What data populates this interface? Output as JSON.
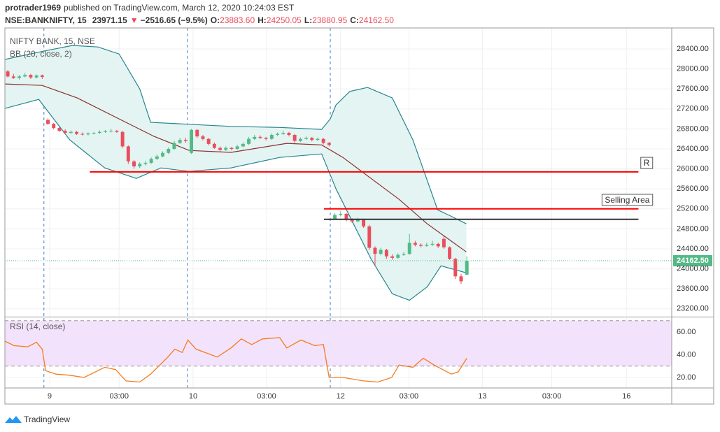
{
  "header": {
    "author": "protrader1969",
    "published": "published on TradingView.com, March 12, 2020 10:24:03 EST",
    "symbol": "NSE:BANKNIFTY, 15",
    "last": "23971.15",
    "arrow": "▼",
    "change": "−2516.65 (−9.5%)",
    "quote": [
      [
        "O:",
        "23883.60"
      ],
      [
        "H:",
        "24250.05"
      ],
      [
        "L:",
        "23880.95"
      ],
      [
        "C:",
        "24162.50"
      ]
    ]
  },
  "footer": {
    "brand": "TradingView"
  },
  "chart_data": [
    {
      "type": "candlestick",
      "title": "NIFTY BANK, 15, NSE",
      "up_color": "#53b987",
      "down_color": "#eb4d5c",
      "candles": [
        [
          27950,
          27980,
          27830,
          27850
        ],
        [
          27850,
          27900,
          27800,
          27820
        ],
        [
          27820,
          27880,
          27790,
          27850
        ],
        [
          27850,
          27920,
          27830,
          27880
        ],
        [
          27880,
          27900,
          27800,
          27830
        ],
        [
          27830,
          27890,
          27810,
          27870
        ],
        [
          27870,
          27890,
          27800,
          27840
        ],
        [
          26980,
          27010,
          26880,
          26900
        ],
        [
          26900,
          26920,
          26790,
          26820
        ],
        [
          26820,
          26840,
          26740,
          26760
        ],
        [
          26760,
          26790,
          26700,
          26720
        ],
        [
          26720,
          26770,
          26700,
          26740
        ],
        [
          26740,
          26760,
          26680,
          26700
        ],
        [
          26700,
          26730,
          26670,
          26690
        ],
        [
          26690,
          26730,
          26670,
          26710
        ],
        [
          26710,
          26740,
          26690,
          26720
        ],
        [
          26720,
          26770,
          26700,
          26740
        ],
        [
          26740,
          26780,
          26720,
          26750
        ],
        [
          26750,
          26800,
          26730,
          26760
        ],
        [
          26760,
          26780,
          26720,
          26740
        ],
        [
          26740,
          26760,
          26420,
          26450
        ],
        [
          26450,
          26470,
          26100,
          26150
        ],
        [
          26150,
          26180,
          26000,
          26050
        ],
        [
          26050,
          26130,
          26020,
          26100
        ],
        [
          26100,
          26160,
          26070,
          26120
        ],
        [
          26120,
          26230,
          26100,
          26200
        ],
        [
          26200,
          26290,
          26180,
          26250
        ],
        [
          26250,
          26350,
          26230,
          26320
        ],
        [
          26320,
          26430,
          26300,
          26400
        ],
        [
          26400,
          26560,
          26380,
          26520
        ],
        [
          26520,
          26620,
          26500,
          26580
        ],
        [
          26580,
          26620,
          26520,
          26560
        ],
        [
          26320,
          26800,
          26300,
          26780
        ],
        [
          26780,
          26800,
          26620,
          26650
        ],
        [
          26650,
          26680,
          26570,
          26600
        ],
        [
          26600,
          26620,
          26470,
          26500
        ],
        [
          26500,
          26530,
          26400,
          26420
        ],
        [
          26420,
          26450,
          26350,
          26380
        ],
        [
          26380,
          26450,
          26360,
          26420
        ],
        [
          26420,
          26440,
          26370,
          26400
        ],
        [
          26400,
          26480,
          26380,
          26450
        ],
        [
          26450,
          26530,
          26430,
          26500
        ],
        [
          26500,
          26640,
          26480,
          26600
        ],
        [
          26600,
          26680,
          26580,
          26640
        ],
        [
          26640,
          26670,
          26600,
          26620
        ],
        [
          26620,
          26640,
          26570,
          26600
        ],
        [
          26600,
          26710,
          26580,
          26680
        ],
        [
          26680,
          26730,
          26660,
          26700
        ],
        [
          26700,
          26760,
          26680,
          26720
        ],
        [
          26720,
          26740,
          26650,
          26680
        ],
        [
          26680,
          26700,
          26520,
          26560
        ],
        [
          26560,
          26630,
          26540,
          26600
        ],
        [
          26600,
          26650,
          26580,
          26620
        ],
        [
          26620,
          26640,
          26550,
          26580
        ],
        [
          26580,
          26630,
          26560,
          26600
        ],
        [
          26600,
          26620,
          26490,
          26520
        ],
        [
          26520,
          26540,
          26450,
          26480
        ],
        [
          25000,
          25120,
          24980,
          25080
        ],
        [
          25080,
          25150,
          25050,
          25100
        ],
        [
          25100,
          25120,
          24950,
          24980
        ],
        [
          24980,
          25010,
          24920,
          24950
        ],
        [
          24950,
          25020,
          24930,
          24980
        ],
        [
          24980,
          25000,
          24820,
          24850
        ],
        [
          24850,
          24880,
          24380,
          24420
        ],
        [
          24420,
          24450,
          24050,
          24300
        ],
        [
          24300,
          24420,
          24270,
          24380
        ],
        [
          24380,
          24400,
          24200,
          24250
        ],
        [
          24250,
          24290,
          24180,
          24220
        ],
        [
          24220,
          24310,
          24200,
          24280
        ],
        [
          24280,
          24340,
          24260,
          24300
        ],
        [
          24300,
          24700,
          24280,
          24520
        ],
        [
          24520,
          24560,
          24450,
          24480
        ],
        [
          24480,
          24510,
          24430,
          24460
        ],
        [
          24460,
          24520,
          24440,
          24480
        ],
        [
          24480,
          24560,
          24460,
          24500
        ],
        [
          24500,
          24520,
          24420,
          24450
        ],
        [
          24600,
          24650,
          24400,
          24430
        ],
        [
          24430,
          24450,
          24180,
          24200
        ],
        [
          24200,
          24220,
          23800,
          23850
        ],
        [
          23850,
          23900,
          23700,
          23750
        ],
        [
          23883.6,
          24250.05,
          23880.95,
          24162.5
        ]
      ],
      "xlim": [
        -0.5,
        115.7
      ],
      "ylim": [
        23057,
        28820
      ],
      "yticks": [
        {
          "value": 23200,
          "label": "23200.00"
        },
        {
          "value": 23600,
          "label": "23600.00"
        },
        {
          "value": 24000,
          "label": "24000.00"
        },
        {
          "value": 24400,
          "label": "24400.00"
        },
        {
          "value": 24800,
          "label": "24800.00"
        },
        {
          "value": 25200,
          "label": "25200.00"
        },
        {
          "value": 25600,
          "label": "25600.00"
        },
        {
          "value": 26000,
          "label": "26000.00"
        },
        {
          "value": 26400,
          "label": "26400.00"
        },
        {
          "value": 26800,
          "label": "26800.00"
        },
        {
          "value": 27200,
          "label": "27200.00"
        },
        {
          "value": 27600,
          "label": "27600.00"
        },
        {
          "value": 28000,
          "label": "28000.00"
        },
        {
          "value": 28400,
          "label": "28400.00"
        }
      ],
      "grid": true,
      "session_breaks": [
        6.3,
        31.3,
        56.2
      ],
      "bb": {
        "label": "BB (20, close, 2)",
        "fill": "#e3f4f2",
        "upper": {
          "color": "#26858f",
          "x": [
            -0.5,
            6,
            11.3,
            15.7,
            19.4,
            23,
            24.9,
            30.4,
            38.9,
            47.4,
            54.7,
            56.2,
            57.2,
            59.6,
            62.7,
            67,
            70.6,
            74.9,
            77.3,
            79.9
          ],
          "values": [
            28190,
            28350,
            28470,
            28440,
            28300,
            27600,
            26930,
            26900,
            26850,
            26830,
            26790,
            27000,
            27280,
            27550,
            27630,
            27420,
            26580,
            25180,
            25050,
            24900
          ]
        },
        "basis": {
          "color": "#8a3030",
          "x": [
            -0.5,
            6,
            12.1,
            19.4,
            25.5,
            31.6,
            38.9,
            48.6,
            54.7,
            58.4,
            63.3,
            68.2,
            73.1,
            79.9
          ],
          "values": [
            27700,
            27670,
            27420,
            27000,
            26650,
            26370,
            26330,
            26510,
            26480,
            26230,
            25810,
            25390,
            24900,
            24340
          ]
        },
        "lower": {
          "color": "#26858f",
          "x": [
            -0.5,
            5.4,
            10.8,
            16.9,
            22.4,
            26.7,
            31.6,
            38.9,
            47.4,
            54.7,
            57.2,
            63.3,
            67,
            70,
            73.1,
            75.5,
            79.9
          ],
          "values": [
            27210,
            27390,
            26580,
            26020,
            25810,
            26020,
            25950,
            26020,
            26230,
            26300,
            25600,
            24200,
            23500,
            23370,
            23640,
            24060,
            23920
          ]
        }
      },
      "levels": [
        {
          "value": 25940,
          "x": [
            14.3,
            109.9
          ],
          "color": "#ff0000",
          "label": "R"
        },
        {
          "value": 25200,
          "x": [
            55.1,
            109.9
          ],
          "color": "#ff0000",
          "label": "Selling Area"
        },
        {
          "value": 24990,
          "x": [
            55.1,
            109.9
          ],
          "color": "#333333"
        }
      ],
      "last_price": {
        "value": 24162.5,
        "label": "24162.50",
        "color": "#53b987"
      }
    },
    {
      "type": "line",
      "title": "RSI (14, close)",
      "color": "#f57c1f",
      "x": [
        -0.5,
        1.1,
        3.5,
        5,
        6,
        6.6,
        8.4,
        10.8,
        13.3,
        16.9,
        18.8,
        20.6,
        23,
        24.9,
        27.9,
        29.1,
        30.4,
        31.4,
        32.8,
        36.5,
        38.9,
        40.7,
        42.5,
        44.4,
        47.4,
        48.6,
        51.1,
        53.5,
        55,
        56,
        58.4,
        62,
        64.5,
        66.9,
        68.2,
        70.6,
        72.4,
        74.3,
        77.3,
        78.5,
        80
      ],
      "values": [
        52,
        48,
        47,
        51,
        45,
        26,
        23,
        22,
        20,
        29,
        27,
        17,
        16,
        23,
        38,
        45,
        42,
        53,
        45,
        38,
        46,
        54,
        49,
        54,
        55,
        46,
        53,
        48,
        49,
        20,
        20,
        17,
        16,
        20,
        31,
        29,
        37,
        31,
        23,
        25,
        37
      ],
      "xlim": [
        -0.5,
        115.7
      ],
      "xticks": [
        {
          "value": 7.3,
          "label": "9"
        },
        {
          "value": 19.4,
          "label": "03:00"
        },
        {
          "value": 32.3,
          "label": "10"
        },
        {
          "value": 45.1,
          "label": "03:00"
        },
        {
          "value": 58.0,
          "label": "12"
        },
        {
          "value": 69.9,
          "label": "03:00"
        },
        {
          "value": 82.7,
          "label": "13"
        },
        {
          "value": 94.8,
          "label": "03:00"
        },
        {
          "value": 107.8,
          "label": "16"
        }
      ],
      "ylim": [
        10.8,
        72.3
      ],
      "yticks": [
        {
          "value": 20,
          "label": "20.00"
        },
        {
          "value": 40,
          "label": "40.00"
        },
        {
          "value": 60,
          "label": "60.00"
        }
      ],
      "band": [
        30,
        70
      ],
      "band_color": "#f3e2fb"
    }
  ]
}
